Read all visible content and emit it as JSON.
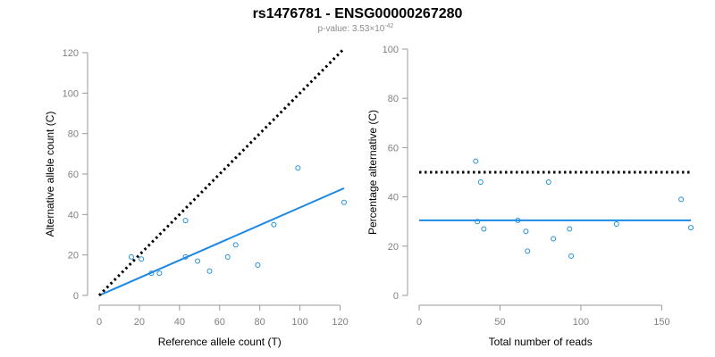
{
  "header": {
    "title": "rs1476781 - ENSG00000267280",
    "pvalue_prefix": "p-value: 3.53×10",
    "pvalue_exponent": "-42"
  },
  "chart_data": [
    {
      "type": "scatter",
      "title": "",
      "xlabel": "Reference allele count (T)",
      "ylabel": "Alternative allele count (C)",
      "xlim": [
        0,
        122
      ],
      "ylim": [
        0,
        120
      ],
      "xticks": [
        0,
        20,
        40,
        60,
        80,
        100,
        120
      ],
      "yticks": [
        0,
        20,
        40,
        60,
        80,
        100,
        120
      ],
      "grid": false,
      "points": [
        {
          "x": 16,
          "y": 19
        },
        {
          "x": 21,
          "y": 18
        },
        {
          "x": 26,
          "y": 11
        },
        {
          "x": 30,
          "y": 11
        },
        {
          "x": 43,
          "y": 37
        },
        {
          "x": 43,
          "y": 19
        },
        {
          "x": 49,
          "y": 17
        },
        {
          "x": 55,
          "y": 12
        },
        {
          "x": 64,
          "y": 19
        },
        {
          "x": 68,
          "y": 25
        },
        {
          "x": 79,
          "y": 15
        },
        {
          "x": 87,
          "y": 35
        },
        {
          "x": 99,
          "y": 63
        },
        {
          "x": 122,
          "y": 46
        }
      ],
      "lines": [
        {
          "name": "fit",
          "style": "solid",
          "color": "#1e88e5",
          "x": [
            0,
            122
          ],
          "y": [
            0,
            53
          ]
        },
        {
          "name": "reference",
          "style": "dotted",
          "color": "#000000",
          "x": [
            0,
            122
          ],
          "y": [
            0,
            122
          ]
        }
      ]
    },
    {
      "type": "scatter",
      "title": "",
      "xlabel": "Total number of reads",
      "ylabel": "Percentage alternative (C)",
      "xlim": [
        0,
        168
      ],
      "ylim": [
        0,
        100
      ],
      "xticks": [
        0,
        50,
        100,
        150
      ],
      "yticks": [
        0,
        20,
        40,
        60,
        80,
        100
      ],
      "grid": false,
      "points": [
        {
          "x": 35,
          "y": 54.5
        },
        {
          "x": 36,
          "y": 30
        },
        {
          "x": 38,
          "y": 46
        },
        {
          "x": 40,
          "y": 27
        },
        {
          "x": 61,
          "y": 30.5
        },
        {
          "x": 66,
          "y": 26
        },
        {
          "x": 67,
          "y": 18
        },
        {
          "x": 80,
          "y": 46
        },
        {
          "x": 83,
          "y": 23
        },
        {
          "x": 93,
          "y": 27
        },
        {
          "x": 94,
          "y": 16
        },
        {
          "x": 122,
          "y": 29
        },
        {
          "x": 162,
          "y": 39
        },
        {
          "x": 168,
          "y": 27.5
        }
      ],
      "lines": [
        {
          "name": "fit",
          "style": "solid",
          "color": "#1e88e5",
          "x": [
            0,
            168
          ],
          "y": [
            30.5,
            30.5
          ]
        },
        {
          "name": "reference",
          "style": "dotted",
          "color": "#000000",
          "x": [
            0,
            168
          ],
          "y": [
            50,
            50
          ]
        }
      ]
    }
  ]
}
